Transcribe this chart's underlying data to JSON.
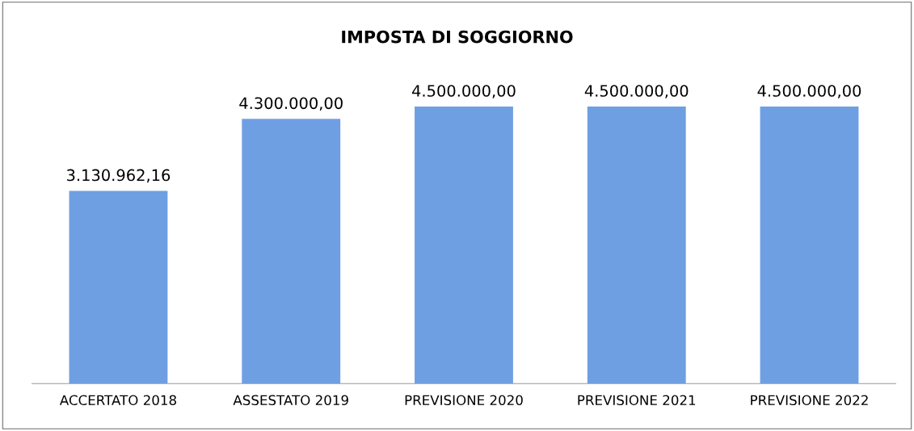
{
  "chart_data": {
    "type": "bar",
    "title": "IMPOSTA DI SOGGIORNO",
    "categories": [
      "ACCERTATO 2018",
      "ASSESTATO 2019",
      "PREVISIONE 2020",
      "PREVISIONE 2021",
      "PREVISIONE 2022"
    ],
    "values": [
      3130962.16,
      4300000,
      4500000,
      4500000,
      4500000
    ],
    "value_labels": [
      "3.130.962,16",
      "4.300.000,00",
      "4.500.000,00",
      "4.500.000,00",
      "4.500.000,00"
    ],
    "color": "#6f9fe3",
    "grid": false,
    "legend": false,
    "tick_labels": "x"
  }
}
